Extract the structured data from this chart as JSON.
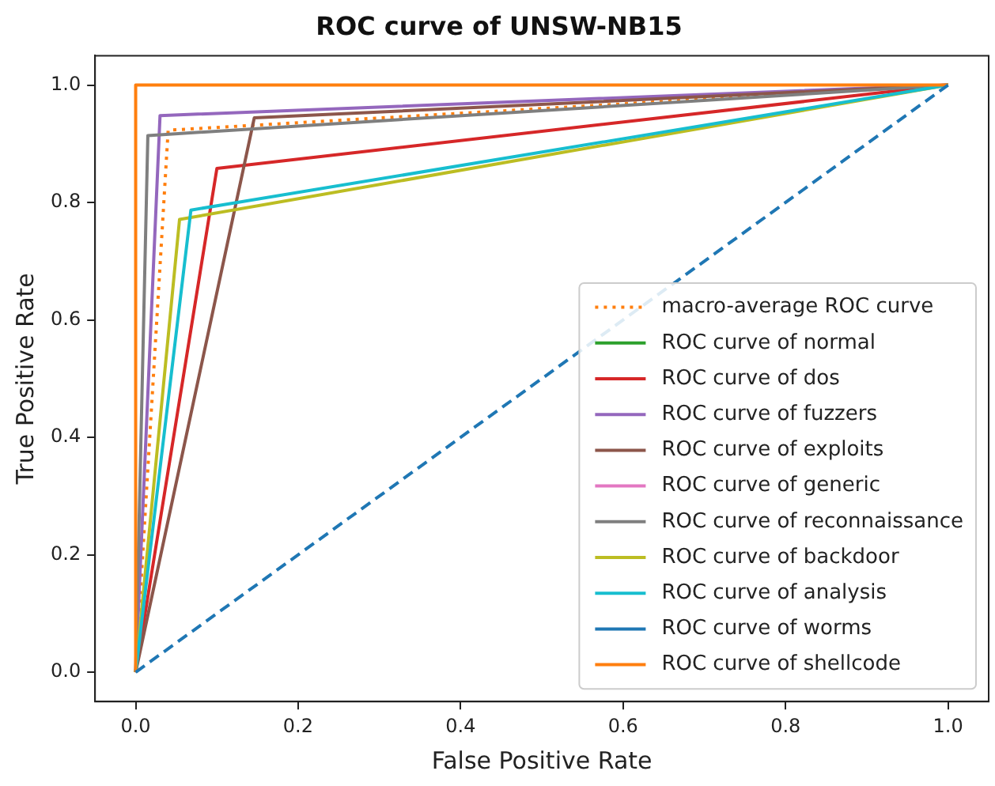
{
  "chart_data": {
    "type": "line",
    "title": "ROC curve of UNSW-NB15",
    "xlabel": "False Positive Rate",
    "ylabel": "True Positive Rate",
    "xlim": [
      -0.05,
      1.05
    ],
    "ylim": [
      -0.05,
      1.05
    ],
    "xticks": [
      {
        "value": 0,
        "label": "0.0"
      },
      {
        "value": 0.2,
        "label": "0.2"
      },
      {
        "value": 0.4,
        "label": "0.4"
      },
      {
        "value": 0.6,
        "label": "0.6"
      },
      {
        "value": 0.8,
        "label": "0.8"
      },
      {
        "value": 1,
        "label": "1.0"
      }
    ],
    "yticks": [
      {
        "value": 0,
        "label": "0.0"
      },
      {
        "value": 0.2,
        "label": "0.2"
      },
      {
        "value": 0.4,
        "label": "0.4"
      },
      {
        "value": 0.6,
        "label": "0.6"
      },
      {
        "value": 0.8,
        "label": "0.8"
      },
      {
        "value": 1,
        "label": "1.0"
      }
    ],
    "grid": false,
    "legend": "bottom right",
    "marker": "none",
    "series": [
      {
        "name": "macro-average ROC curve",
        "color": "#ff7f0e",
        "line_style": "dotted",
        "x": [
          0,
          0.04,
          1
        ],
        "values": [
          0,
          0.923,
          1
        ]
      },
      {
        "name": "ROC curve of normal",
        "color": "#2ca02c"
      },
      {
        "name": "ROC curve of dos",
        "color": "#d62728",
        "x": [
          0,
          0.1,
          1
        ],
        "values": [
          0,
          0.858,
          1
        ]
      },
      {
        "name": "ROC curve of fuzzers",
        "color": "#9467bd",
        "x": [
          0,
          0.03,
          1
        ],
        "values": [
          0,
          0.948,
          1
        ]
      },
      {
        "name": "ROC curve of exploits",
        "color": "#8c564b",
        "x": [
          0,
          0.146,
          1
        ],
        "values": [
          0,
          0.944,
          1
        ]
      },
      {
        "name": "ROC curve of generic",
        "color": "#e377c2"
      },
      {
        "name": "ROC curve of reconnaissance",
        "color": "#7f7f7f",
        "x": [
          0,
          0.015,
          1
        ],
        "values": [
          0,
          0.914,
          1
        ]
      },
      {
        "name": "ROC curve of backdoor",
        "color": "#bcbd22",
        "x": [
          0,
          0.054,
          1
        ],
        "values": [
          0,
          0.771,
          1
        ]
      },
      {
        "name": "ROC curve of analysis",
        "color": "#17becf",
        "x": [
          0,
          0.068,
          1
        ],
        "values": [
          0,
          0.787,
          1
        ]
      },
      {
        "name": "ROC curve of worms",
        "color": "#1f77b4"
      },
      {
        "name": "ROC curve of shellcode",
        "color": "#ff7f0e",
        "x": [
          0,
          0,
          1
        ],
        "values": [
          0,
          1,
          1
        ]
      },
      {
        "color": "#1f77b4",
        "line_style": "dashed",
        "x": [
          0,
          1
        ],
        "values": [
          0,
          1
        ]
      }
    ]
  }
}
